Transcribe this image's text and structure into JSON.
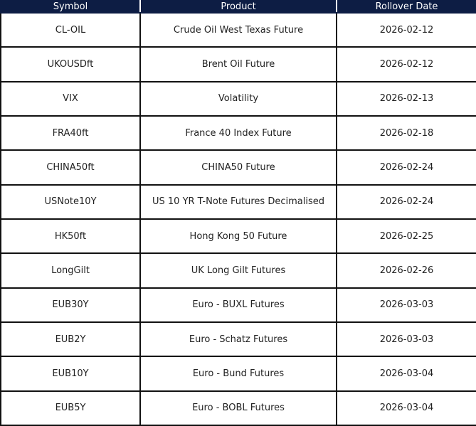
{
  "table": {
    "header": [
      "Symbol",
      "Product",
      "Rollover Date"
    ],
    "rows": [
      [
        "CL-OIL",
        "Crude Oil West Texas Future",
        "2026-02-12"
      ],
      [
        "UKOUSDft",
        "Brent Oil Future",
        "2026-02-12"
      ],
      [
        "VIX",
        "Volatility",
        "2026-02-13"
      ],
      [
        "FRA40ft",
        "France 40 Index Future",
        "2026-02-18"
      ],
      [
        "CHINA50ft",
        "CHINA50 Future",
        "2026-02-24"
      ],
      [
        "USNote10Y",
        "US 10 YR T-Note Futures Decimalised",
        "2026-02-24"
      ],
      [
        "HK50ft",
        "Hong Kong 50 Future",
        "2026-02-25"
      ],
      [
        "LongGilt",
        "UK Long Gilt Futures",
        "2026-02-26"
      ],
      [
        "EUB30Y",
        "Euro - BUXL Futures",
        "2026-03-03"
      ],
      [
        "EUB2Y",
        "Euro - Schatz Futures",
        "2026-03-03"
      ],
      [
        "EUB10Y",
        "Euro - Bund Futures",
        "2026-03-04"
      ],
      [
        "EUB5Y",
        "Euro - BOBL Futures",
        "2026-03-04"
      ]
    ]
  }
}
